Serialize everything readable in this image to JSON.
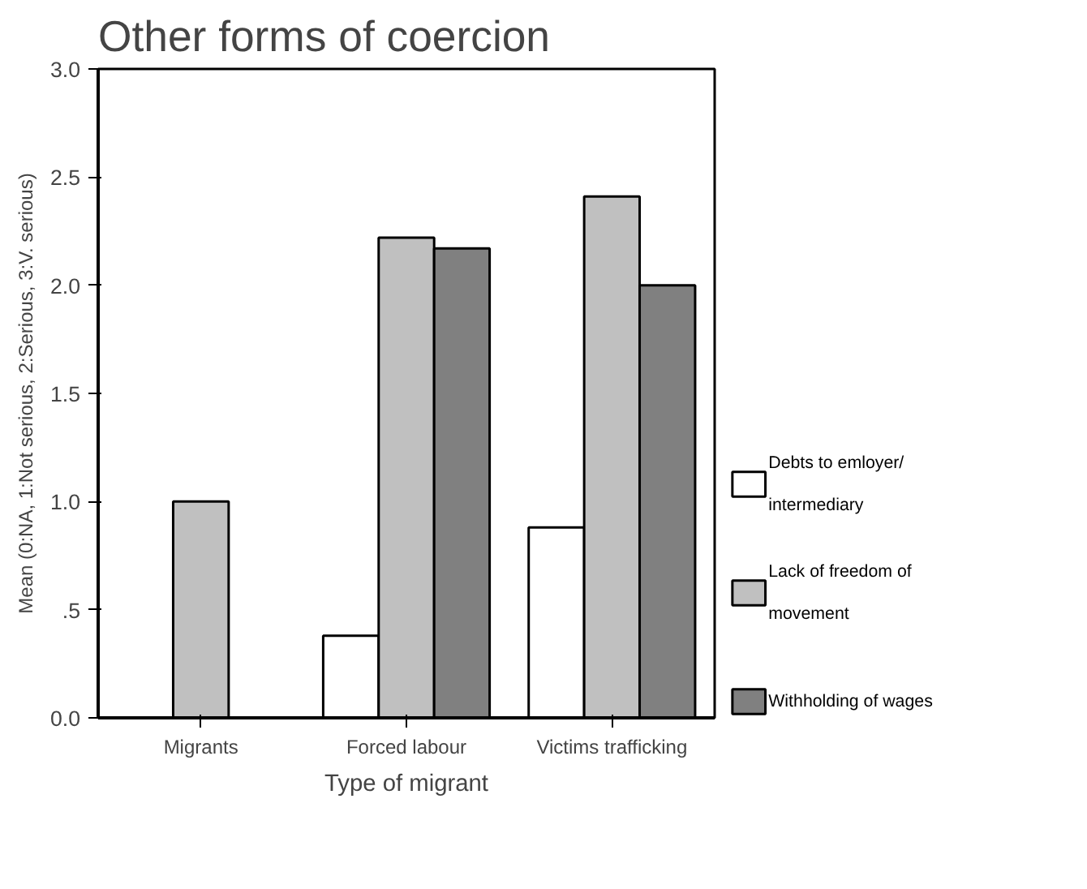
{
  "chart_data": {
    "type": "bar",
    "title": "Other forms of coercion",
    "xlabel": "Type of migrant",
    "ylabel": "Mean (0:NA, 1:Not serious, 2:Serious, 3:V. serious)",
    "categories": [
      "Migrants",
      "Forced labour",
      "Victims trafficking"
    ],
    "series": [
      {
        "name": "Debts to emloyer/\nintermediary",
        "color": "#ffffff",
        "values": [
          0,
          0.38,
          0.88
        ]
      },
      {
        "name": "Lack of freedom of\nmovement",
        "color": "#c0c0c0",
        "values": [
          1.0,
          2.22,
          2.41
        ]
      },
      {
        "name": "Withholding of wages",
        "color": "#808080",
        "values": [
          0,
          2.17,
          2.0
        ]
      }
    ],
    "ylim": [
      0,
      3
    ],
    "yticks": [
      {
        "value": 0,
        "label": "0.0"
      },
      {
        "value": 0.5,
        "label": ".5"
      },
      {
        "value": 1,
        "label": "1.0"
      },
      {
        "value": 1.5,
        "label": "1.5"
      },
      {
        "value": 2,
        "label": "2.0"
      },
      {
        "value": 2.5,
        "label": "2.5"
      },
      {
        "value": 3,
        "label": "3.0"
      }
    ],
    "legend": "right"
  }
}
